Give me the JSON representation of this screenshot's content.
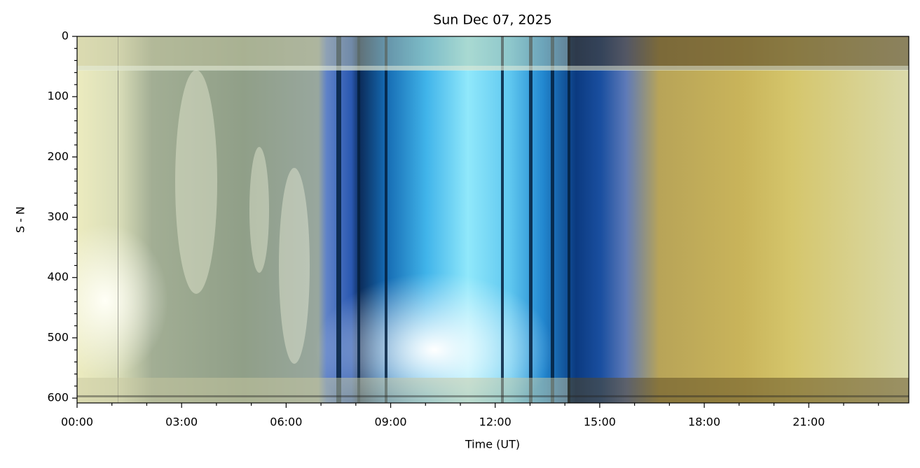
{
  "chart_data": {
    "type": "image",
    "title": "Sun Dec 07, 2025",
    "xlabel": "Time (UT)",
    "ylabel": "S - N",
    "xlim": [
      0,
      23.87
    ],
    "ylim": [
      608,
      0
    ],
    "xticks": [
      {
        "value": 0,
        "label": "00:00"
      },
      {
        "value": 3,
        "label": "03:00"
      },
      {
        "value": 6,
        "label": "06:00"
      },
      {
        "value": 9,
        "label": "09:00"
      },
      {
        "value": 12,
        "label": "12:00"
      },
      {
        "value": 15,
        "label": "15:00"
      },
      {
        "value": 18,
        "label": "18:00"
      },
      {
        "value": 21,
        "label": "21:00"
      }
    ],
    "xminorticks": [
      1,
      2,
      4,
      5,
      7,
      8,
      10,
      11,
      13,
      14,
      16,
      17,
      19,
      20,
      22,
      23
    ],
    "yticks": [
      0,
      100,
      200,
      300,
      400,
      500,
      600
    ],
    "yminorticks": [
      20,
      40,
      60,
      80,
      120,
      140,
      160,
      180,
      220,
      240,
      260,
      280,
      320,
      340,
      360,
      380,
      420,
      440,
      460,
      480,
      520,
      540,
      560,
      580
    ]
  }
}
